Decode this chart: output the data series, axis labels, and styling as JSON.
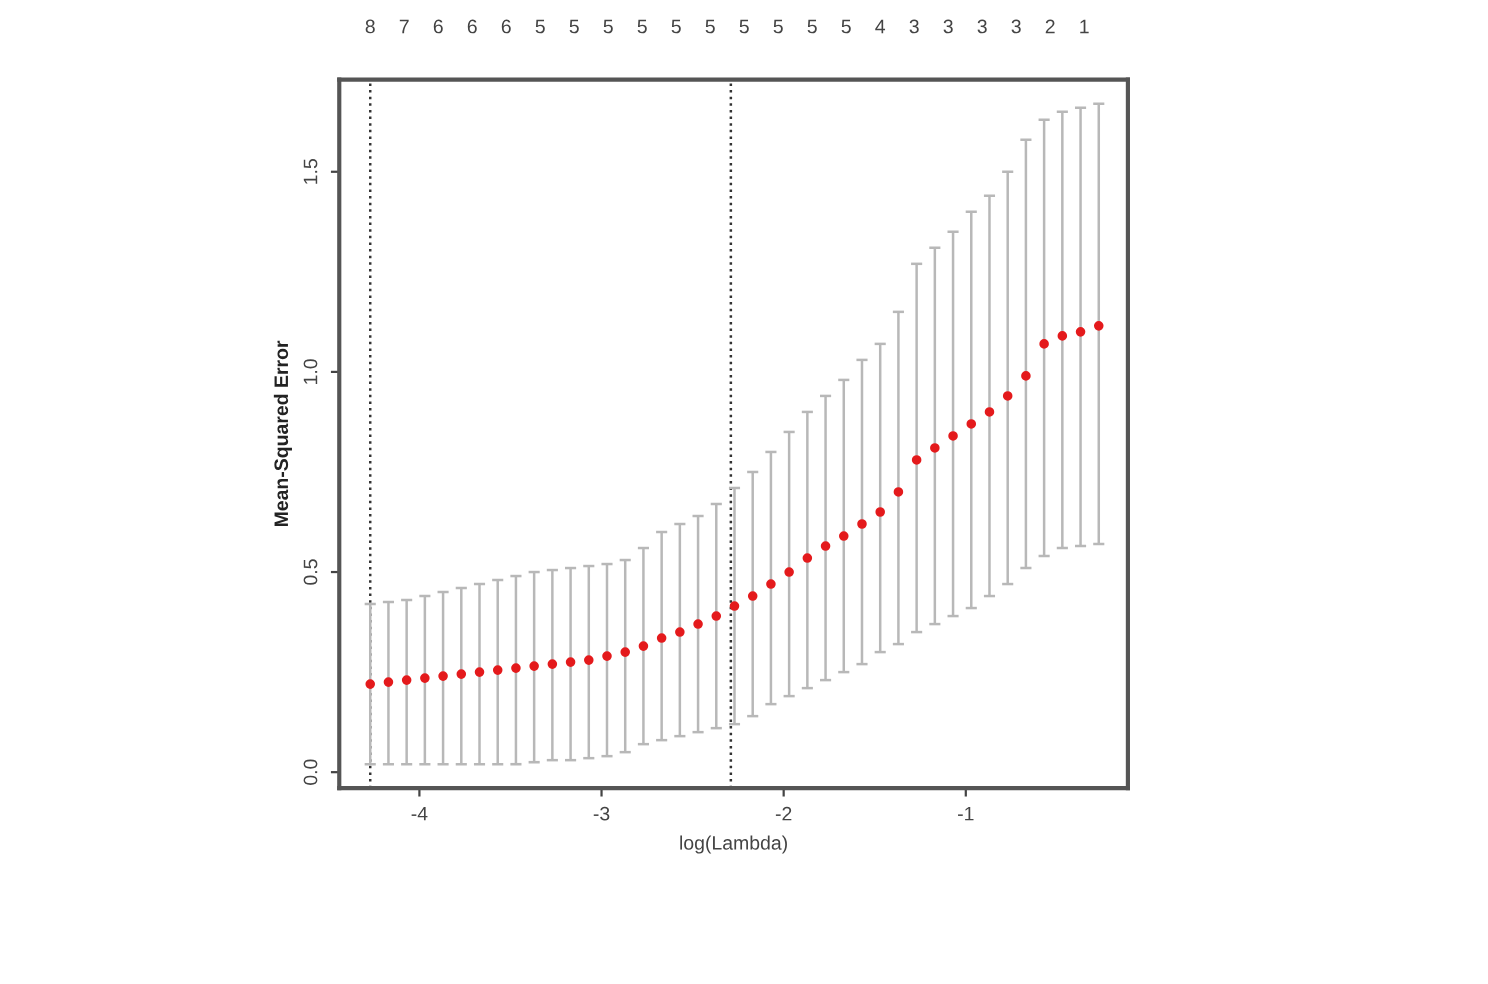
{
  "chart_data": {
    "type": "scatter",
    "xlabel": "log(Lambda)",
    "ylabel": "Mean-Squared Error",
    "x": [
      -4.27,
      -4.17,
      -4.07,
      -3.97,
      -3.87,
      -3.77,
      -3.67,
      -3.57,
      -3.47,
      -3.37,
      -3.27,
      -3.17,
      -3.07,
      -2.97,
      -2.87,
      -2.77,
      -2.67,
      -2.57,
      -2.47,
      -2.37,
      -2.27,
      -2.17,
      -2.07,
      -1.97,
      -1.87,
      -1.77,
      -1.67,
      -1.57,
      -1.47,
      -1.37,
      -1.27,
      -1.17,
      -1.07,
      -0.97,
      -0.87,
      -0.77,
      -0.67,
      -0.57,
      -0.47,
      -0.37,
      -0.27
    ],
    "series": [
      {
        "color": "#e41a1c",
        "values": [
          0.22,
          0.225,
          0.23,
          0.235,
          0.24,
          0.245,
          0.25,
          0.255,
          0.26,
          0.265,
          0.27,
          0.275,
          0.28,
          0.29,
          0.3,
          0.315,
          0.335,
          0.35,
          0.37,
          0.39,
          0.415,
          0.44,
          0.47,
          0.5,
          0.535,
          0.565,
          0.59,
          0.62,
          0.65,
          0.7,
          0.78,
          0.81,
          0.84,
          0.87,
          0.9,
          0.94,
          0.99,
          1.07,
          1.09,
          1.1,
          1.115
        ],
        "errors": [
          [
            0.02,
            0.42
          ],
          [
            0.02,
            0.425
          ],
          [
            0.02,
            0.43
          ],
          [
            0.02,
            0.44
          ],
          [
            0.02,
            0.45
          ],
          [
            0.02,
            0.46
          ],
          [
            0.02,
            0.47
          ],
          [
            0.02,
            0.48
          ],
          [
            0.02,
            0.49
          ],
          [
            0.025,
            0.5
          ],
          [
            0.03,
            0.505
          ],
          [
            0.03,
            0.51
          ],
          [
            0.035,
            0.515
          ],
          [
            0.04,
            0.52
          ],
          [
            0.05,
            0.53
          ],
          [
            0.07,
            0.56
          ],
          [
            0.08,
            0.6
          ],
          [
            0.09,
            0.62
          ],
          [
            0.1,
            0.64
          ],
          [
            0.11,
            0.67
          ],
          [
            0.12,
            0.71
          ],
          [
            0.14,
            0.75
          ],
          [
            0.17,
            0.8
          ],
          [
            0.19,
            0.85
          ],
          [
            0.21,
            0.9
          ],
          [
            0.23,
            0.94
          ],
          [
            0.25,
            0.98
          ],
          [
            0.27,
            1.03
          ],
          [
            0.3,
            1.07
          ],
          [
            0.32,
            1.15
          ],
          [
            0.35,
            1.27
          ],
          [
            0.37,
            1.31
          ],
          [
            0.39,
            1.35
          ],
          [
            0.41,
            1.4
          ],
          [
            0.44,
            1.44
          ],
          [
            0.47,
            1.5
          ],
          [
            0.51,
            1.58
          ],
          [
            0.54,
            1.63
          ],
          [
            0.56,
            1.65
          ],
          [
            0.565,
            1.66
          ],
          [
            0.57,
            1.67
          ]
        ]
      }
    ],
    "marker": "circle",
    "xlim": [
      -4.44,
      -0.11
    ],
    "ylim": [
      -0.04,
      1.73
    ],
    "xticks": [
      -4,
      -3,
      -2,
      -1
    ],
    "yticks": [
      {
        "value": 0,
        "label": "0.0"
      },
      0.5,
      {
        "value": 1,
        "label": "1.0"
      },
      1.5
    ],
    "annotations": [
      "8",
      "7",
      "6",
      "6",
      "6",
      "5",
      "5",
      "5",
      "5",
      "5",
      "5",
      "5",
      "5",
      "5",
      "5",
      "4",
      "3",
      "3",
      "3",
      "3",
      "2",
      "1"
    ],
    "ref_lines": [
      {
        "axis": "x",
        "value": -4.27,
        "line_style": "dotted",
        "color": "#333333"
      },
      {
        "axis": "x",
        "value": -2.29,
        "line_style": "dotted",
        "color": "#333333"
      }
    ],
    "grid": false,
    "legend": false
  }
}
